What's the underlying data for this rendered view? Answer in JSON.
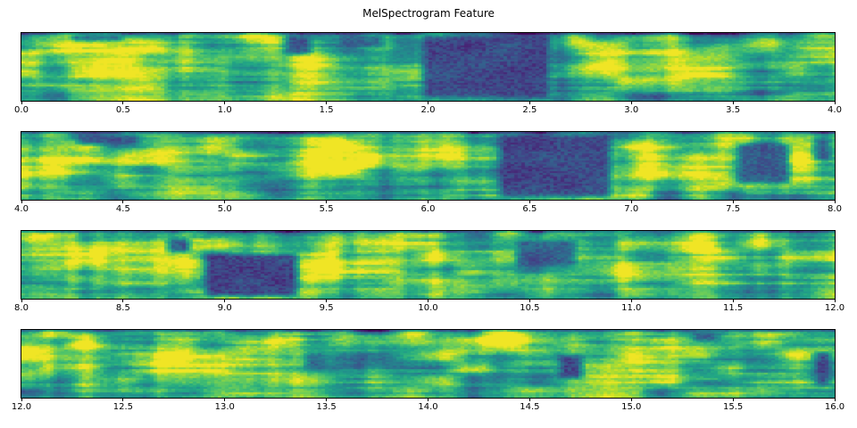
{
  "title": "MelSpectrogram Feature",
  "figure": {
    "background": "#ffffff",
    "spine_color": "#000000",
    "text_color": "#000000"
  },
  "chart_data": {
    "type": "heatmap",
    "title": "MelSpectrogram Feature",
    "xlabel": "",
    "ylabel": "",
    "x_unit": "seconds",
    "x_total_range": [
      0,
      16
    ],
    "grid": false,
    "legend": false,
    "colormap": "viridis",
    "colormap_stops": [
      "#440154",
      "#482475",
      "#414487",
      "#355f8d",
      "#2a788e",
      "#21918c",
      "#22a884",
      "#44bf70",
      "#7ad151",
      "#bddf26",
      "#fde725"
    ],
    "panels": [
      {
        "x_range": [
          0.0,
          4.0
        ],
        "tick_labels": [
          "0.0",
          "0.5",
          "1.0",
          "1.5",
          "2.0",
          "2.5",
          "3.0",
          "3.5",
          "4.0"
        ],
        "seed": 101,
        "low_energy_regions": [
          {
            "t": [
              1.95,
              2.62
            ],
            "y": [
              0.0,
              1.0
            ],
            "level": 0.16
          },
          {
            "t": [
              1.28,
              1.45
            ],
            "y": [
              0.0,
              0.35
            ],
            "level": 0.22
          },
          {
            "t": [
              0.22,
              0.52
            ],
            "y": [
              0.0,
              0.14
            ],
            "level": 0.2
          },
          {
            "t": [
              1.55,
              1.8
            ],
            "y": [
              0.0,
              0.25
            ],
            "level": 0.28
          }
        ],
        "high_energy_patches": [
          {
            "t": 0.28,
            "y": 0.25,
            "rt": 0.12,
            "ry": 0.18,
            "amp": 0.3
          },
          {
            "t": 0.5,
            "y": 0.6,
            "rt": 0.15,
            "ry": 0.2,
            "amp": 0.25
          },
          {
            "t": 1.22,
            "y": 0.12,
            "rt": 0.08,
            "ry": 0.1,
            "amp": 0.35
          },
          {
            "t": 1.45,
            "y": 0.62,
            "rt": 0.12,
            "ry": 0.2,
            "amp": 0.28
          },
          {
            "t": 2.72,
            "y": 0.1,
            "rt": 0.06,
            "ry": 0.1,
            "amp": 0.35
          },
          {
            "t": 2.95,
            "y": 0.45,
            "rt": 0.14,
            "ry": 0.22,
            "amp": 0.3
          },
          {
            "t": 3.35,
            "y": 0.5,
            "rt": 0.12,
            "ry": 0.2,
            "amp": 0.3
          },
          {
            "t": 3.88,
            "y": 0.15,
            "rt": 0.1,
            "ry": 0.12,
            "amp": 0.35
          }
        ]
      },
      {
        "x_range": [
          4.0,
          8.0
        ],
        "tick_labels": [
          "4.0",
          "4.5",
          "5.0",
          "5.5",
          "6.0",
          "6.5",
          "7.0",
          "7.5",
          "8.0"
        ],
        "seed": 202,
        "low_energy_regions": [
          {
            "t": [
              6.33,
              6.92
            ],
            "y": [
              0.0,
              1.0
            ],
            "level": 0.15
          },
          {
            "t": [
              4.25,
              4.6
            ],
            "y": [
              0.0,
              0.22
            ],
            "level": 0.22
          },
          {
            "t": [
              7.5,
              7.8
            ],
            "y": [
              0.15,
              0.8
            ],
            "level": 0.24
          },
          {
            "t": [
              7.88,
              8.0
            ],
            "y": [
              0.05,
              0.45
            ],
            "level": 0.25
          }
        ],
        "high_energy_patches": [
          {
            "t": 4.2,
            "y": 0.55,
            "rt": 0.1,
            "ry": 0.2,
            "amp": 0.28
          },
          {
            "t": 4.75,
            "y": 0.35,
            "rt": 0.12,
            "ry": 0.2,
            "amp": 0.28
          },
          {
            "t": 5.5,
            "y": 0.2,
            "rt": 0.1,
            "ry": 0.15,
            "amp": 0.38
          },
          {
            "t": 5.62,
            "y": 0.5,
            "rt": 0.12,
            "ry": 0.2,
            "amp": 0.25
          },
          {
            "t": 6.05,
            "y": 0.3,
            "rt": 0.1,
            "ry": 0.18,
            "amp": 0.28
          },
          {
            "t": 7.08,
            "y": 0.45,
            "rt": 0.08,
            "ry": 0.22,
            "amp": 0.35
          },
          {
            "t": 7.32,
            "y": 0.55,
            "rt": 0.08,
            "ry": 0.18,
            "amp": 0.3
          },
          {
            "t": 7.55,
            "y": 0.06,
            "rt": 0.08,
            "ry": 0.08,
            "amp": 0.3
          },
          {
            "t": 7.85,
            "y": 0.5,
            "rt": 0.06,
            "ry": 0.18,
            "amp": 0.32
          }
        ]
      },
      {
        "x_range": [
          8.0,
          12.0
        ],
        "tick_labels": [
          "8.0",
          "8.5",
          "9.0",
          "9.5",
          "10.0",
          "10.5",
          "11.0",
          "11.5",
          "12.0"
        ],
        "seed": 303,
        "low_energy_regions": [
          {
            "t": [
              8.88,
              9.38
            ],
            "y": [
              0.3,
              1.0
            ],
            "level": 0.15
          },
          {
            "t": [
              8.7,
              8.85
            ],
            "y": [
              0.08,
              0.35
            ],
            "level": 0.2
          },
          {
            "t": [
              10.42,
              10.75
            ],
            "y": [
              0.1,
              0.55
            ],
            "level": 0.24
          }
        ],
        "high_energy_patches": [
          {
            "t": 8.15,
            "y": 0.15,
            "rt": 0.1,
            "ry": 0.14,
            "amp": 0.4
          },
          {
            "t": 8.4,
            "y": 0.3,
            "rt": 0.1,
            "ry": 0.18,
            "amp": 0.28
          },
          {
            "t": 9.05,
            "y": 0.95,
            "rt": 0.18,
            "ry": 0.07,
            "amp": 0.4
          },
          {
            "t": 9.5,
            "y": 0.3,
            "rt": 0.06,
            "ry": 0.2,
            "amp": 0.35
          },
          {
            "t": 9.58,
            "y": 0.65,
            "rt": 0.07,
            "ry": 0.18,
            "amp": 0.28
          },
          {
            "t": 10.0,
            "y": 0.25,
            "rt": 0.1,
            "ry": 0.16,
            "amp": 0.28
          },
          {
            "t": 10.95,
            "y": 0.55,
            "rt": 0.08,
            "ry": 0.2,
            "amp": 0.28
          },
          {
            "t": 11.35,
            "y": 0.3,
            "rt": 0.1,
            "ry": 0.18,
            "amp": 0.3
          },
          {
            "t": 11.6,
            "y": 0.2,
            "rt": 0.08,
            "ry": 0.12,
            "amp": 0.25
          }
        ]
      },
      {
        "x_range": [
          12.0,
          16.0
        ],
        "tick_labels": [
          "12.0",
          "12.5",
          "13.0",
          "13.5",
          "14.0",
          "14.5",
          "15.0",
          "15.5",
          "16.0"
        ],
        "seed": 404,
        "low_energy_regions": [
          {
            "t": [
              14.62,
              14.78
            ],
            "y": [
              0.35,
              0.75
            ],
            "level": 0.15
          },
          {
            "t": [
              15.28,
              15.45
            ],
            "y": [
              0.0,
              0.2
            ],
            "level": 0.25
          },
          {
            "t": [
              15.88,
              16.0
            ],
            "y": [
              0.3,
              0.85
            ],
            "level": 0.17
          },
          {
            "t": [
              13.38,
              13.52
            ],
            "y": [
              0.3,
              0.6
            ],
            "level": 0.3
          }
        ],
        "high_energy_patches": [
          {
            "t": 12.05,
            "y": 0.35,
            "rt": 0.08,
            "ry": 0.18,
            "amp": 0.25
          },
          {
            "t": 12.3,
            "y": 0.2,
            "rt": 0.1,
            "ry": 0.15,
            "amp": 0.28
          },
          {
            "t": 12.8,
            "y": 0.45,
            "rt": 0.1,
            "ry": 0.2,
            "amp": 0.25
          },
          {
            "t": 13.3,
            "y": 0.12,
            "rt": 0.08,
            "ry": 0.1,
            "amp": 0.3
          },
          {
            "t": 13.95,
            "y": 0.08,
            "rt": 0.1,
            "ry": 0.1,
            "amp": 0.38
          },
          {
            "t": 14.35,
            "y": 0.1,
            "rt": 0.09,
            "ry": 0.1,
            "amp": 0.4
          },
          {
            "t": 15.1,
            "y": 0.5,
            "rt": 0.1,
            "ry": 0.2,
            "amp": 0.26
          },
          {
            "t": 15.7,
            "y": 0.12,
            "rt": 0.09,
            "ry": 0.12,
            "amp": 0.3
          }
        ]
      }
    ]
  }
}
